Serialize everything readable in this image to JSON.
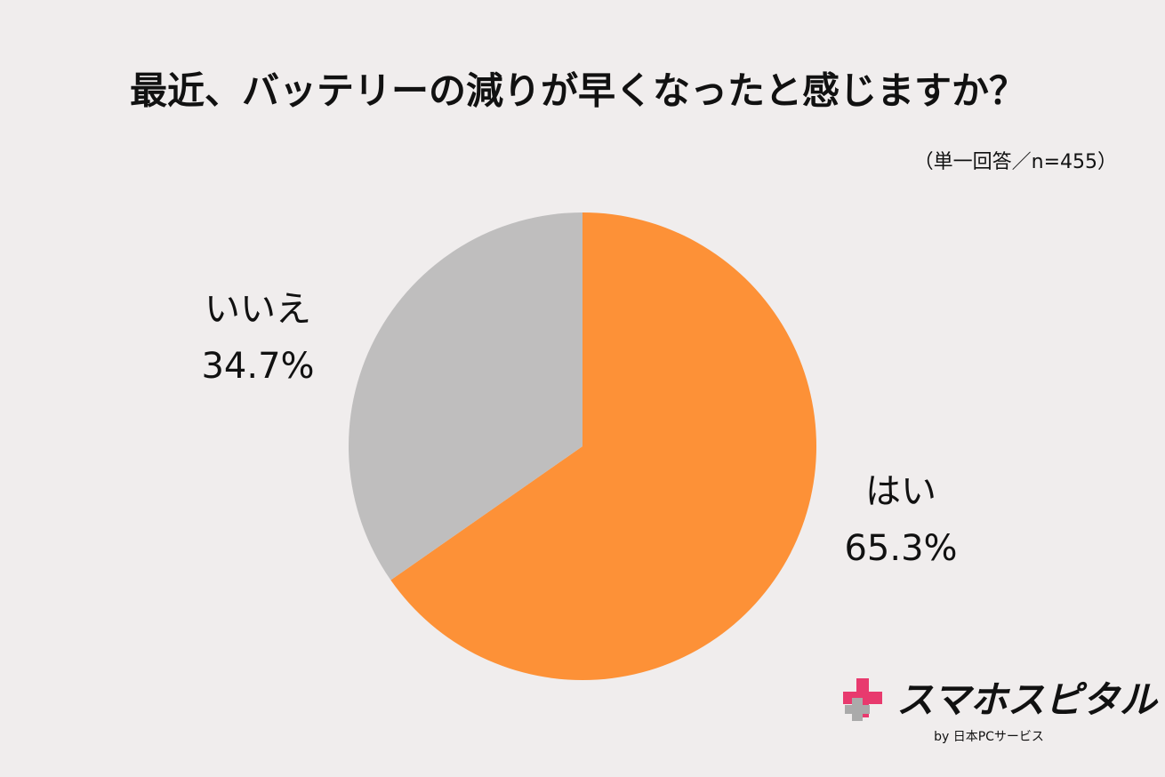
{
  "chart_data": {
    "type": "pie",
    "title": "最近、バッテリーの減りが早くなったと感じますか？",
    "subtitle": "（単一回答／n=455）",
    "categories": [
      "はい",
      "いいえ"
    ],
    "values": [
      65.3,
      34.7
    ],
    "value_labels": [
      "65.3%",
      "34.7%"
    ],
    "colors": [
      "#fd9137",
      "#bfbebe"
    ]
  },
  "logo": {
    "name": "スマホスピタル",
    "byline": "by  日本PCサービス"
  }
}
